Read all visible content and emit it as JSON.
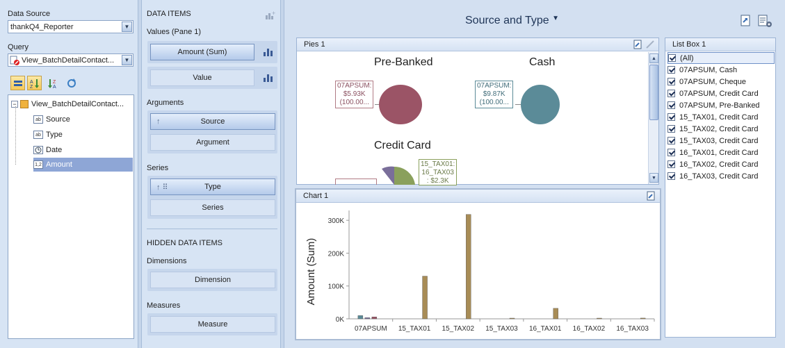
{
  "left": {
    "datasource_label": "Data Source",
    "datasource_value": "thankQ4_Reporter",
    "query_label": "Query",
    "query_value": "View_BatchDetailContact...",
    "tree": {
      "root": "View_BatchDetailContact...",
      "fields": [
        {
          "label": "Source",
          "icon": "ab"
        },
        {
          "label": "Type",
          "icon": "ab"
        },
        {
          "label": "Date",
          "icon": "clock"
        },
        {
          "label": "Amount",
          "icon": "1,2"
        }
      ]
    }
  },
  "middle": {
    "data_items_title": "DATA ITEMS",
    "values_label": "Values (Pane 1)",
    "value_items": [
      "Amount (Sum)",
      "Value"
    ],
    "arguments_label": "Arguments",
    "argument_items": [
      "Source",
      "Argument"
    ],
    "series_label": "Series",
    "series_items": [
      "Type",
      "Series"
    ],
    "hidden_title": "HIDDEN DATA ITEMS",
    "dimensions_label": "Dimensions",
    "dimension_item": "Dimension",
    "measures_label": "Measures",
    "measure_item": "Measure"
  },
  "dashboard": {
    "title": "Source and Type",
    "pies_caption": "Pies 1",
    "pies": [
      {
        "title": "Pre-Banked",
        "label_lines": [
          "07APSUM:",
          "$5.93K",
          "(100.00..."
        ],
        "color": "#9b5466"
      },
      {
        "title": "Cash",
        "label_lines": [
          "07APSUM:",
          "$9.87K",
          "(100.00..."
        ],
        "color": "#5b8b98"
      },
      {
        "title": "Credit Card",
        "label_lines": [
          "15_TAX01:",
          "16_TAX03",
          ": $2.3K"
        ],
        "color": "#8aa05c"
      }
    ],
    "chart_caption": "Chart 1",
    "listbox_caption": "List Box 1",
    "listbox_items": [
      "(All)",
      "07APSUM, Cash",
      "07APSUM, Cheque",
      "07APSUM, Credit Card",
      "07APSUM, Pre-Banked",
      "15_TAX01, Credit Card",
      "15_TAX02, Credit Card",
      "15_TAX03, Credit Card",
      "16_TAX01, Credit Card",
      "16_TAX02, Credit Card",
      "16_TAX03, Credit Card"
    ]
  },
  "chart_data": {
    "type": "bar",
    "ylabel": "Amount (Sum)",
    "ylim": [
      0,
      330000
    ],
    "yticks": [
      0,
      100000,
      200000,
      300000
    ],
    "ytick_labels": [
      "0K",
      "100K",
      "200K",
      "300K"
    ],
    "categories": [
      "07APSUM",
      "15_TAX01",
      "15_TAX02",
      "15_TAX03",
      "16_TAX01",
      "16_TAX02",
      "16_TAX03"
    ],
    "series": [
      {
        "color": "#5b8b98",
        "values": [
          9870,
          0,
          0,
          0,
          0,
          0,
          0
        ]
      },
      {
        "color": "#7a6e9a",
        "values": [
          3500,
          0,
          0,
          0,
          0,
          0,
          0
        ]
      },
      {
        "color": "#9b5466",
        "values": [
          5930,
          0,
          0,
          0,
          0,
          0,
          0
        ]
      },
      {
        "color": "#a88c56",
        "values": [
          0,
          130000,
          318000,
          600,
          32000,
          2000,
          2300
        ]
      }
    ],
    "grid": false
  }
}
